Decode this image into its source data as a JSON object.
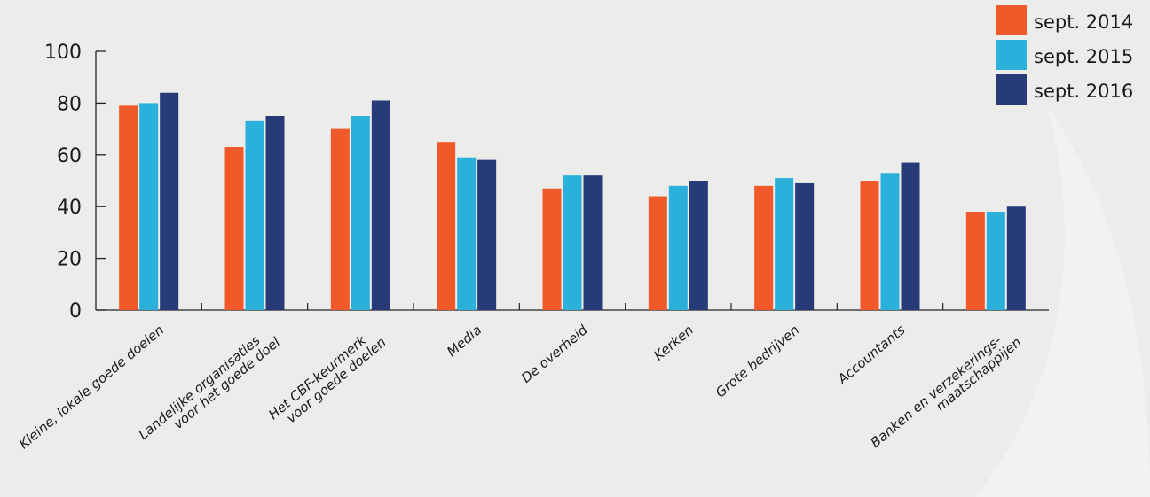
{
  "chart_data": {
    "type": "bar",
    "categories": [
      [
        "Kleine, lokale goede doelen"
      ],
      [
        "Landelijke organisaties",
        "voor het goede doel"
      ],
      [
        "Het CBF-keurmerk",
        "voor goede doelen"
      ],
      [
        "Media"
      ],
      [
        "De overheid"
      ],
      [
        "Kerken"
      ],
      [
        "Grote bedrijven"
      ],
      [
        "Accountants"
      ],
      [
        "Banken en verzekerings-",
        "maatschappijen"
      ]
    ],
    "series": [
      {
        "name": "sept. 2014",
        "color": "#f2592a",
        "values": [
          79,
          63,
          70,
          65,
          47,
          44,
          48,
          50,
          38
        ]
      },
      {
        "name": "sept. 2015",
        "color": "#2bb0dc",
        "values": [
          80,
          73,
          75,
          59,
          52,
          48,
          51,
          53,
          38
        ]
      },
      {
        "name": "sept. 2016",
        "color": "#263b78",
        "values": [
          84,
          75,
          81,
          58,
          52,
          50,
          49,
          57,
          40
        ]
      }
    ],
    "yticks": [
      "0",
      "20",
      "40",
      "60",
      "80",
      "100"
    ],
    "ylim": [
      0,
      100
    ],
    "grid": false,
    "legend_position": "top-right"
  }
}
